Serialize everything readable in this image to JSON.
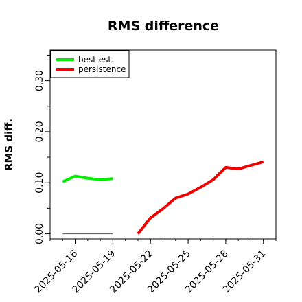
{
  "chart_data": {
    "type": "line",
    "title": "RMS difference",
    "xlabel": "",
    "ylabel": "RMS diff.",
    "ylim": [
      -0.01,
      0.36
    ],
    "xlim": [
      "2025-05-14",
      "2025-06-01"
    ],
    "grid": false,
    "legend_position": "top-left",
    "x_ticks": [
      "2025-05-16",
      "2025-05-19",
      "2025-05-22",
      "2025-05-25",
      "2025-05-28",
      "2025-05-31"
    ],
    "y_ticks": [
      "0.00",
      "0.10",
      "0.20",
      "0.30"
    ],
    "series": [
      {
        "name": "best est.",
        "color": "#00ee00",
        "points": [
          {
            "x": "2025-05-15",
            "y": 0.102
          },
          {
            "x": "2025-05-16",
            "y": 0.113
          },
          {
            "x": "2025-05-17",
            "y": 0.109
          },
          {
            "x": "2025-05-18",
            "y": 0.106
          },
          {
            "x": "2025-05-19",
            "y": 0.108
          }
        ]
      },
      {
        "name": "persistence",
        "color": "#ee0000",
        "points": [
          {
            "x": "2025-05-21",
            "y": 0.0
          },
          {
            "x": "2025-05-22",
            "y": 0.031
          },
          {
            "x": "2025-05-23",
            "y": 0.049
          },
          {
            "x": "2025-05-24",
            "y": 0.07
          },
          {
            "x": "2025-05-25",
            "y": 0.078
          },
          {
            "x": "2025-05-26",
            "y": 0.091
          },
          {
            "x": "2025-05-27",
            "y": 0.106
          },
          {
            "x": "2025-05-28",
            "y": 0.13
          },
          {
            "x": "2025-05-29",
            "y": 0.127
          },
          {
            "x": "2025-05-30",
            "y": 0.134
          },
          {
            "x": "2025-05-31",
            "y": 0.141
          }
        ]
      }
    ],
    "reference_line": {
      "color": "#666666",
      "y": 0.0,
      "x_from": "2025-05-15",
      "x_to": "2025-05-19"
    }
  }
}
